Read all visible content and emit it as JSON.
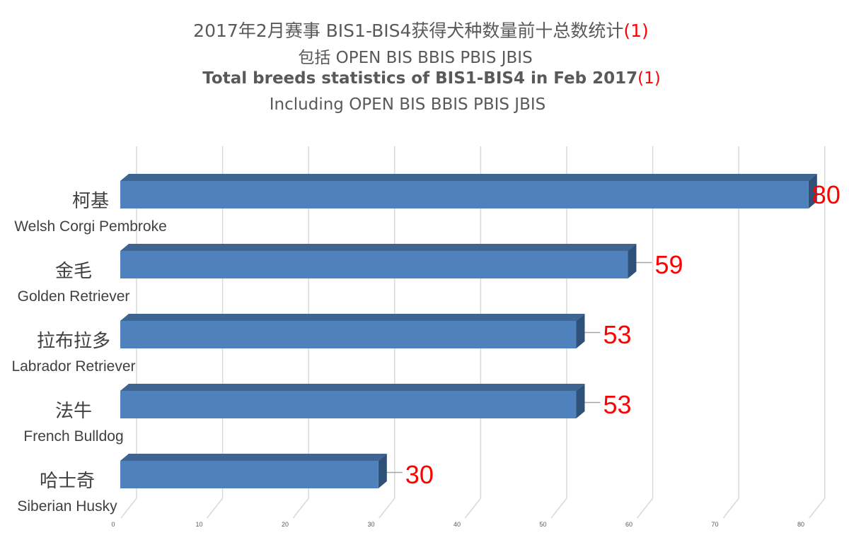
{
  "titles": {
    "line1_text": "2017年2月赛事 BIS1-BIS4获得犬种数量前十总数统计",
    "line1_note": "(1)",
    "line2_text": "包括 OPEN BIS BBIS PBIS JBIS",
    "line3_text": "Total breeds statistics of  BIS1-BIS4 in Feb 2017",
    "line3_note": "(1)",
    "line4_text": "Including OPEN BIS BBIS PBIS JBIS"
  },
  "colors": {
    "bar_front": "#4f81bd",
    "bar_top": "#3e6492",
    "bar_side": "#2f5077",
    "data_label": "#ff0000",
    "grid": "#d9d9d9",
    "text": "#595959"
  },
  "chart_data": {
    "type": "bar",
    "orientation": "horizontal",
    "style": "3d",
    "title": "2017年2月赛事 BIS1-BIS4获得犬种数量前十总数统计(1) 包括 OPEN BIS BBIS PBIS JBIS / Total breeds statistics of BIS1-BIS4 in Feb 2017(1) Including OPEN BIS BBIS PBIS JBIS",
    "categories": [
      {
        "cn": "柯基",
        "en": "Welsh Corgi Pembroke"
      },
      {
        "cn": "金毛",
        "en": "Golden Retriever"
      },
      {
        "cn": "拉布拉多",
        "en": "Labrador Retriever"
      },
      {
        "cn": "法牛",
        "en": "French Bulldog"
      },
      {
        "cn": "哈士奇",
        "en": "Siberian Husky"
      }
    ],
    "values": [
      80,
      59,
      53,
      53,
      30
    ],
    "xlabel": "",
    "ylabel": "",
    "xlim": [
      0,
      80
    ],
    "x_ticks": [
      "0",
      "10",
      "20",
      "30",
      "40",
      "50",
      "60",
      "70",
      "80"
    ],
    "grid": true,
    "legend": null
  }
}
